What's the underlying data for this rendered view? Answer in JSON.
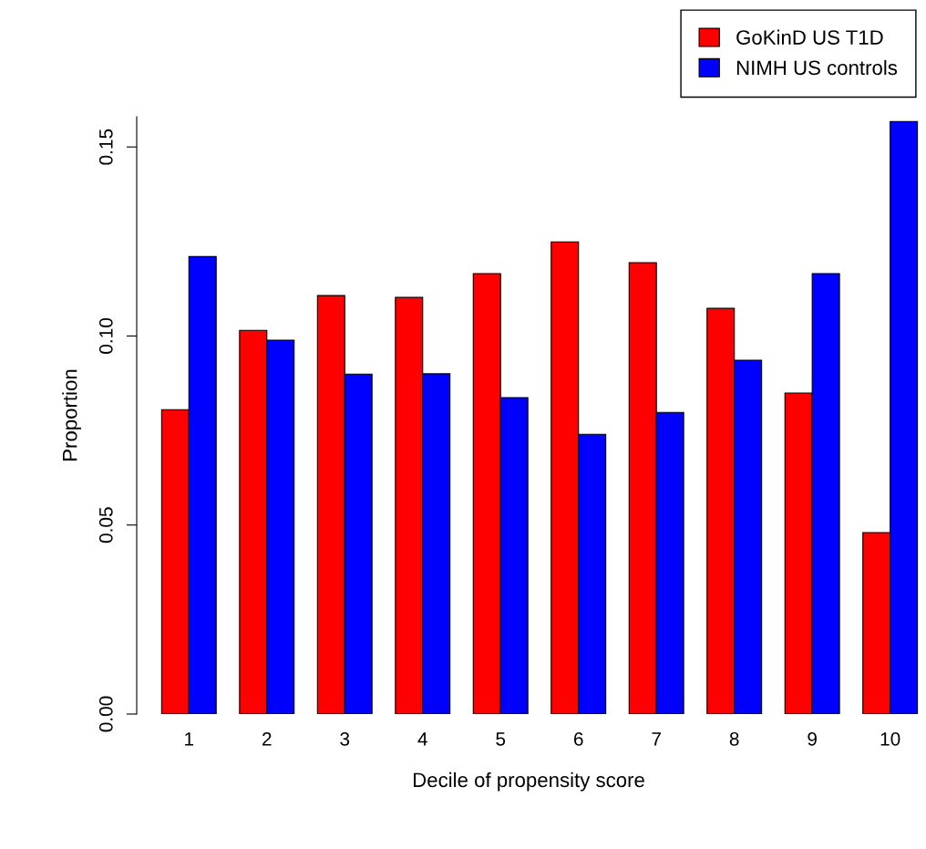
{
  "chart_data": {
    "type": "bar",
    "xlabel": "Decile of propensity score",
    "ylabel": "Proportion",
    "categories": [
      "1",
      "2",
      "3",
      "4",
      "5",
      "6",
      "7",
      "8",
      "9",
      "10"
    ],
    "series": [
      {
        "name": "GoKinD US T1D",
        "color": "#ff0000",
        "values": [
          0.0805,
          0.1015,
          0.1107,
          0.1102,
          0.1165,
          0.1249,
          0.1194,
          0.1073,
          0.0849,
          0.048
        ]
      },
      {
        "name": "NIMH US controls",
        "color": "#0000ff",
        "values": [
          0.121,
          0.0989,
          0.0899,
          0.09,
          0.0837,
          0.074,
          0.0798,
          0.0936,
          0.1165,
          0.1567
        ]
      }
    ],
    "ylim": [
      0,
      0.158
    ],
    "yticks": [
      {
        "value": 0,
        "label": "0.00"
      },
      {
        "value": 0.05,
        "label": "0.05"
      },
      {
        "value": 0.1,
        "label": "0.10"
      },
      {
        "value": 0.15,
        "label": "0.15"
      }
    ],
    "grid": false,
    "legend": "top right"
  }
}
